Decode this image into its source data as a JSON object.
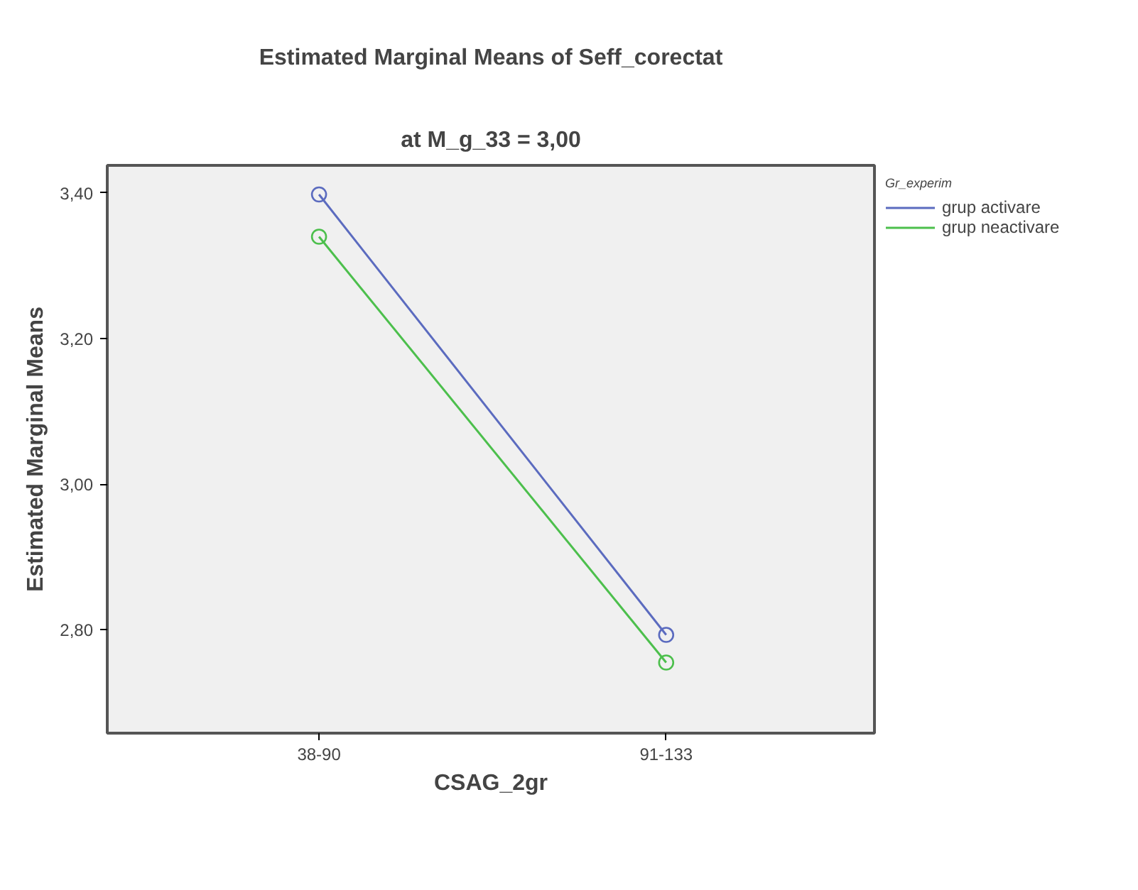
{
  "chart_data": {
    "type": "line",
    "title": "Estimated Marginal Means of Seff_corectat",
    "subtitle": "at M_g_33 = 3,00",
    "xlabel": "CSAG_2gr",
    "ylabel": "Estimated Marginal Means",
    "legend_title": "Gr_experim",
    "categories": [
      "38-90",
      "91-133"
    ],
    "series": [
      {
        "name": "grup activare",
        "color": "#5b6bbf",
        "values": [
          3.398,
          2.793
        ]
      },
      {
        "name": "grup neactivare",
        "color": "#4cbf4c",
        "values": [
          3.34,
          2.755
        ]
      }
    ],
    "ylim": [
      2.658,
      3.438
    ],
    "yticks": [
      {
        "value": 2.8,
        "label": "2,80"
      },
      {
        "value": 3.0,
        "label": "3,00"
      },
      {
        "value": 3.2,
        "label": "3,20"
      },
      {
        "value": 3.4,
        "label": "3,40"
      }
    ],
    "grid": false,
    "legend": "right",
    "marker": "circle",
    "line_style": "solid"
  }
}
